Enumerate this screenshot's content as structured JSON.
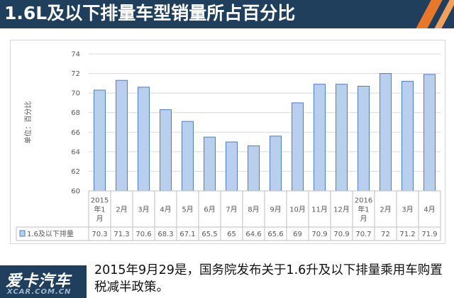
{
  "header": {
    "title": "1.6L及以下排量车型销量所占百分比",
    "background": "#1f3f5c",
    "accent": "#e7782b"
  },
  "chart_data": {
    "type": "bar",
    "title": "",
    "xlabel": "",
    "ylabel": "单位：百分比",
    "ylim": [
      60,
      74
    ],
    "yticks": [
      60,
      62,
      64,
      66,
      68,
      70,
      72,
      74
    ],
    "grid": true,
    "legend_placement": "data-table-left",
    "categories": [
      [
        "2015",
        "年1",
        "月"
      ],
      [
        "2月"
      ],
      [
        "3月"
      ],
      [
        "4月"
      ],
      [
        "5月"
      ],
      [
        "6月"
      ],
      [
        "7月"
      ],
      [
        "8月"
      ],
      [
        "9月"
      ],
      [
        "10月"
      ],
      [
        "11月"
      ],
      [
        "12月"
      ],
      [
        "2016",
        "年1",
        "月"
      ],
      [
        "2月"
      ],
      [
        "3月"
      ],
      [
        "4月"
      ]
    ],
    "series": [
      {
        "name": "1.6及以下排量",
        "values": [
          70.3,
          71.3,
          70.6,
          68.3,
          67.1,
          65.5,
          65,
          64.6,
          65.6,
          69,
          70.9,
          70.9,
          70.7,
          72,
          71.2,
          71.9
        ],
        "color": "#b9cfee",
        "edge": "#4f7cc2"
      }
    ]
  },
  "footer": {
    "logo_name": "爱卡汽车",
    "logo_sub": "XCAR.COM.CN",
    "caption": "2015年9月29是，国务院发布关于1.6升及以下排量乘用车购置税减半政策。"
  }
}
